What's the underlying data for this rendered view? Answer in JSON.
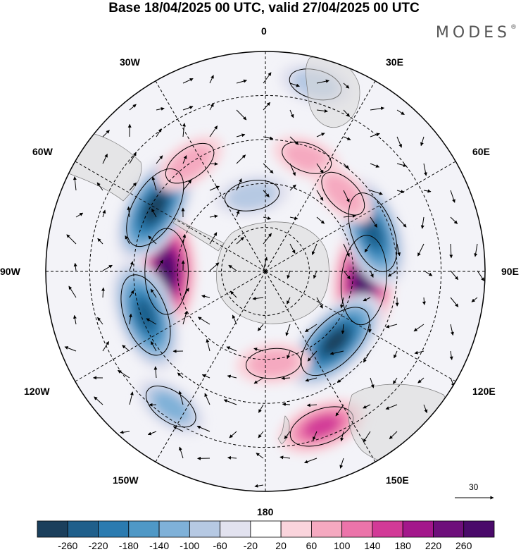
{
  "title": "Base 18/04/2025 00 UTC, valid 27/04/2025 00 UTC",
  "brand": "MODES",
  "brand_mark": "®",
  "longitude_labels": {
    "lon_0": "0",
    "lon_30e": "30E",
    "lon_60e": "60E",
    "lon_90e": "90E",
    "lon_120e": "120E",
    "lon_150e": "150E",
    "lon_180": "180",
    "lon_150w": "150W",
    "lon_120w": "120W",
    "lon_90w": "90W",
    "lon_60w": "60W",
    "lon_30w": "30W"
  },
  "reference_vector": "30",
  "colorbar": {
    "ticks": [
      "-260",
      "-220",
      "-180",
      "-140",
      "-100",
      "-60",
      "-20",
      "20",
      "60",
      "100",
      "140",
      "180",
      "220",
      "260"
    ],
    "colors": [
      "#1b3f5c",
      "#1f5f8b",
      "#2b7bb0",
      "#4f98c6",
      "#7fb1d8",
      "#b6c9e3",
      "#e2e2ef",
      "#ffffff",
      "#fad4dc",
      "#f5a9c0",
      "#ec74aa",
      "#d23a97",
      "#a3178b",
      "#6e0f7b",
      "#4a0a6a"
    ]
  },
  "anomaly_centers": [
    {
      "lon": 95,
      "lat_from_pole": 0.45,
      "value": 280
    },
    {
      "lon": -90,
      "lat_from_pole": 0.45,
      "value": 260
    },
    {
      "lon": 70,
      "lat_from_pole": 0.52,
      "value": -240
    },
    {
      "lon": 135,
      "lat_from_pole": 0.45,
      "value": -260
    },
    {
      "lon": -60,
      "lat_from_pole": 0.58,
      "value": -260
    },
    {
      "lon": -110,
      "lat_from_pole": 0.58,
      "value": -250
    },
    {
      "lon": 160,
      "lat_from_pole": 0.75,
      "value": 150
    },
    {
      "lon": 175,
      "lat_from_pole": 0.42,
      "value": 90
    },
    {
      "lon": 20,
      "lat_from_pole": 0.55,
      "value": 70
    },
    {
      "lon": 45,
      "lat_from_pole": 0.5,
      "value": 80
    },
    {
      "lon": -35,
      "lat_from_pole": 0.6,
      "value": 90
    },
    {
      "lon": -10,
      "lat_from_pole": 0.35,
      "value": -90
    },
    {
      "lon": -145,
      "lat_from_pole": 0.75,
      "value": -100
    },
    {
      "lon": 15,
      "lat_from_pole": 0.88,
      "value": -80
    }
  ]
}
